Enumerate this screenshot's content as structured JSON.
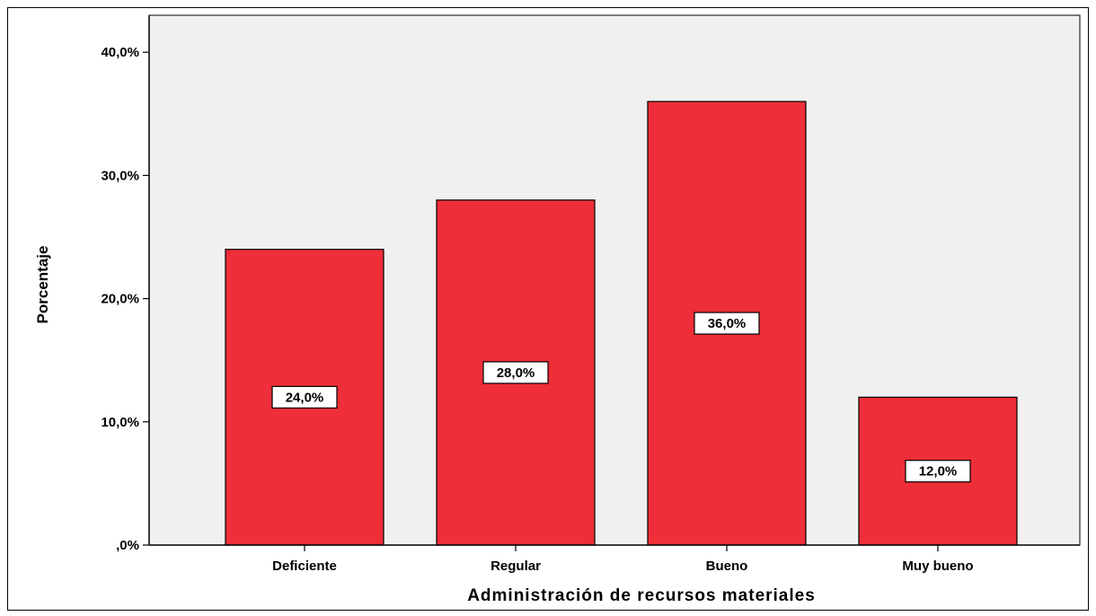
{
  "chart_data": {
    "type": "bar",
    "categories": [
      "Deficiente",
      "Regular",
      "Bueno",
      "Muy bueno"
    ],
    "values": [
      24.0,
      28.0,
      36.0,
      12.0
    ],
    "data_labels": [
      "24,0%",
      "28,0%",
      "36,0%",
      "12,0%"
    ],
    "xlabel": "Administración de recursos materiales",
    "ylabel": "Porcentaje",
    "ylim": [
      0,
      43
    ],
    "yticks": [
      0,
      10,
      20,
      30,
      40
    ],
    "ytick_labels": [
      ",0%",
      "10,0%",
      "20,0%",
      "30,0%",
      "40,0%"
    ],
    "grid": false,
    "colors": {
      "bar_fill": "#EE2E38",
      "bar_stroke": "#000000",
      "plot_background": "#F0F0F0",
      "label_box": "#FFFFFF"
    }
  }
}
